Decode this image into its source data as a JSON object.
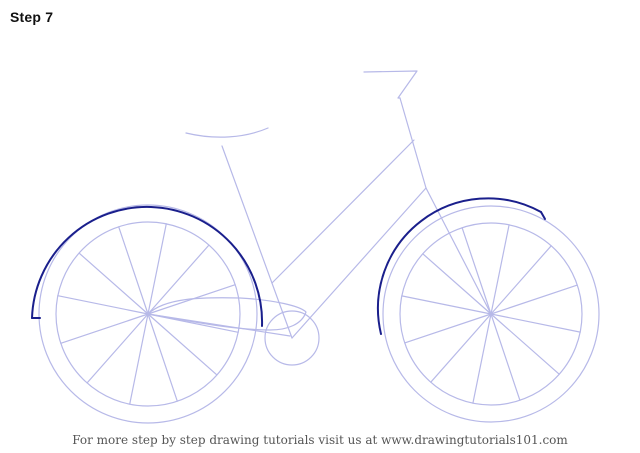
{
  "heading": {
    "step": "Step 7"
  },
  "footer": {
    "text": "For more step by step drawing tutorials visit us at www.drawingtutorials101.com"
  },
  "colors": {
    "guide": "#b7b9e8",
    "ink": "#1a1f8c",
    "title": "#111111",
    "footer": "#555555"
  }
}
